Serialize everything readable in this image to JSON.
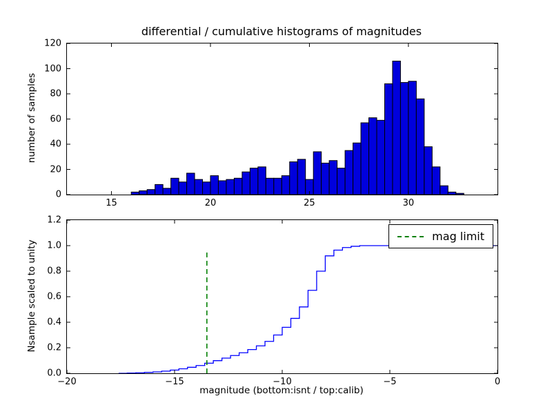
{
  "figure": {
    "background": "#ffffff"
  },
  "chart_data": [
    {
      "type": "bar",
      "title": "differential / cumulative histograms of magnitudes",
      "ylabel": "number of samples",
      "xlim": [
        12.75,
        34.5
      ],
      "ylim": [
        0,
        120
      ],
      "xticks": [
        15,
        20,
        25,
        30
      ],
      "xticklabels": [
        "15",
        "20",
        "25",
        "30"
      ],
      "yticks": [
        0,
        20,
        40,
        60,
        80,
        100,
        120
      ],
      "yticklabels": [
        "0",
        "20",
        "40",
        "60",
        "80",
        "100",
        "120"
      ],
      "bin_start": 16.0,
      "bin_width": 0.4,
      "counts": [
        2,
        3,
        4,
        8,
        5,
        13,
        10,
        17,
        12,
        10,
        15,
        11,
        12,
        13,
        18,
        21,
        22,
        13,
        13,
        15,
        26,
        28,
        12,
        34,
        25,
        27,
        21,
        35,
        41,
        57,
        61,
        59,
        88,
        106,
        89,
        90,
        76,
        38,
        22,
        7,
        2,
        1
      ],
      "bar_fill": "#0000dd",
      "bar_edge": "#000000"
    },
    {
      "type": "line",
      "ylabel": "Nsample scaled to unity",
      "xlabel": "magnitude (bottom:isnt / top:calib)",
      "xlim": [
        -20,
        0
      ],
      "ylim": [
        0,
        1.2
      ],
      "xticks": [
        -20,
        -15,
        -10,
        -5,
        0
      ],
      "xticklabels": [
        "−20",
        "−15",
        "−10",
        "−5",
        "0"
      ],
      "yticks": [
        0,
        0.2,
        0.4,
        0.6,
        0.8,
        1.0,
        1.2
      ],
      "yticklabels": [
        "0.0",
        "0.2",
        "0.4",
        "0.6",
        "0.8",
        "1.0",
        "1.2"
      ],
      "line_color": "#0000ff",
      "steps": [
        [
          -17.6,
          0.0
        ],
        [
          -17.2,
          0.002
        ],
        [
          -16.8,
          0.004
        ],
        [
          -16.4,
          0.007
        ],
        [
          -16.0,
          0.011
        ],
        [
          -15.6,
          0.017
        ],
        [
          -15.2,
          0.025
        ],
        [
          -14.8,
          0.035
        ],
        [
          -14.4,
          0.047
        ],
        [
          -14.0,
          0.061
        ],
        [
          -13.6,
          0.079
        ],
        [
          -13.2,
          0.099
        ],
        [
          -12.8,
          0.119
        ],
        [
          -12.4,
          0.139
        ],
        [
          -12.0,
          0.161
        ],
        [
          -11.6,
          0.186
        ],
        [
          -11.2,
          0.215
        ],
        [
          -10.8,
          0.25
        ],
        [
          -10.4,
          0.3
        ],
        [
          -10.0,
          0.36
        ],
        [
          -9.6,
          0.43
        ],
        [
          -9.2,
          0.52
        ],
        [
          -8.8,
          0.65
        ],
        [
          -8.4,
          0.8
        ],
        [
          -8.0,
          0.92
        ],
        [
          -7.6,
          0.965
        ],
        [
          -7.2,
          0.985
        ],
        [
          -6.8,
          0.995
        ],
        [
          -6.4,
          1.0
        ],
        [
          0.0,
          1.0
        ]
      ],
      "vline": {
        "x": -13.5,
        "y0": 0,
        "y1": 0.97,
        "color": "#008000",
        "style": "dashed",
        "label": "mag limit"
      },
      "legend_label": "mag limit"
    }
  ]
}
